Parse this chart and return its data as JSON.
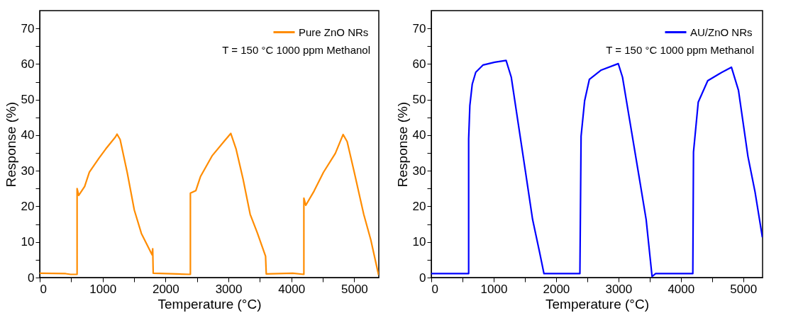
{
  "chart_data": [
    {
      "type": "line",
      "xlabel": "Temperature (°C)",
      "ylabel": "Response (%)",
      "annotations": [
        "T = 150 °C 1000 ppm Methanol"
      ],
      "legend": "top right",
      "grid": false,
      "xlim": [
        0,
        5390
      ],
      "ylim": [
        0,
        75
      ],
      "xticks": [
        0,
        {
          "value": 500,
          "label": null
        },
        1000,
        {
          "value": 1500,
          "label": null
        },
        2000,
        {
          "value": 2500,
          "label": null
        },
        3000,
        {
          "value": 3500,
          "label": null
        },
        4000,
        {
          "value": 4500,
          "label": null
        },
        5000
      ],
      "yticks": [
        0,
        {
          "value": 5,
          "label": null
        },
        10,
        {
          "value": 15,
          "label": null
        },
        20,
        {
          "value": 25,
          "label": null
        },
        30,
        {
          "value": 35,
          "label": null
        },
        40,
        {
          "value": 45,
          "label": null
        },
        50,
        {
          "value": 55,
          "label": null
        },
        60,
        {
          "value": 65,
          "label": null
        },
        70
      ],
      "series": [
        {
          "name": "Pure ZnO NRs",
          "color": "#ff8c00",
          "x": [
            0,
            413,
            490,
            594,
            594,
            620,
            714,
            789,
            940,
            1052,
            1203,
            1229,
            1278,
            1390,
            1503,
            1616,
            1729,
            1785,
            1796,
            1804,
            2180,
            2395,
            2395,
            2481,
            2556,
            2744,
            2932,
            3037,
            3120,
            3232,
            3345,
            3458,
            3590,
            3601,
            4022,
            4199,
            4199,
            4229,
            4361,
            4511,
            4699,
            4823,
            4887,
            5000,
            5150,
            5263,
            5387
          ],
          "values": [
            1.2,
            1.1,
            0.9,
            0.9,
            25,
            23.1,
            25.6,
            29.6,
            33.5,
            36.2,
            39.5,
            40.3,
            38.8,
            29.6,
            19.0,
            12.4,
            8.4,
            6.4,
            8.1,
            1.2,
            1.0,
            0.9,
            23.7,
            24.4,
            28.4,
            34.3,
            38.3,
            40.5,
            36.2,
            27.7,
            17.8,
            12.6,
            6.0,
            1.0,
            1.2,
            0.9,
            22.3,
            20.3,
            24.3,
            29.6,
            34.9,
            40.2,
            38.2,
            29.6,
            17.8,
            10.6,
            0.7
          ]
        }
      ]
    },
    {
      "type": "line",
      "xlabel": "Temperature (°C)",
      "ylabel": "Response (%)",
      "annotations": [
        "T = 150 °C 1000 ppm Methanol"
      ],
      "legend": "top right",
      "grid": false,
      "xlim": [
        0,
        5310
      ],
      "ylim": [
        0,
        75
      ],
      "xticks": [
        0,
        {
          "value": 500,
          "label": null
        },
        1000,
        {
          "value": 1500,
          "label": null
        },
        2000,
        {
          "value": 2500,
          "label": null
        },
        3000,
        {
          "value": 3500,
          "label": null
        },
        4000,
        {
          "value": 4500,
          "label": null
        },
        5000
      ],
      "yticks": [
        0,
        {
          "value": 5,
          "label": null
        },
        10,
        {
          "value": 15,
          "label": null
        },
        20,
        {
          "value": 25,
          "label": null
        },
        30,
        {
          "value": 35,
          "label": null
        },
        40,
        {
          "value": 45,
          "label": null
        },
        50,
        {
          "value": 55,
          "label": null
        },
        60,
        {
          "value": 65,
          "label": null
        },
        70
      ],
      "series": [
        {
          "name": "AU/ZnO NRs",
          "color": "#0000ff",
          "x": [
            0,
            599,
            599,
            618,
            656,
            713,
            827,
            1016,
            1199,
            1282,
            1396,
            1510,
            1624,
            1737,
            1806,
            2382,
            2401,
            2458,
            2534,
            2724,
            2997,
            3065,
            3179,
            3331,
            3444,
            3539,
            3596,
            4192,
            4203,
            4279,
            4431,
            4621,
            4811,
            4924,
            5076,
            5190,
            5307
          ],
          "values": [
            1.1,
            1.1,
            39.0,
            48.3,
            54.3,
            57.7,
            59.7,
            60.5,
            61.0,
            56.3,
            43.0,
            29.7,
            16.3,
            7.0,
            1.1,
            1.1,
            39.7,
            49.7,
            55.7,
            58.3,
            60.1,
            56.3,
            44.3,
            28.3,
            16.3,
            0.3,
            1.1,
            1.1,
            35.3,
            49.3,
            55.3,
            57.3,
            59.1,
            52.6,
            34.0,
            24.0,
            11.3
          ]
        }
      ]
    }
  ]
}
